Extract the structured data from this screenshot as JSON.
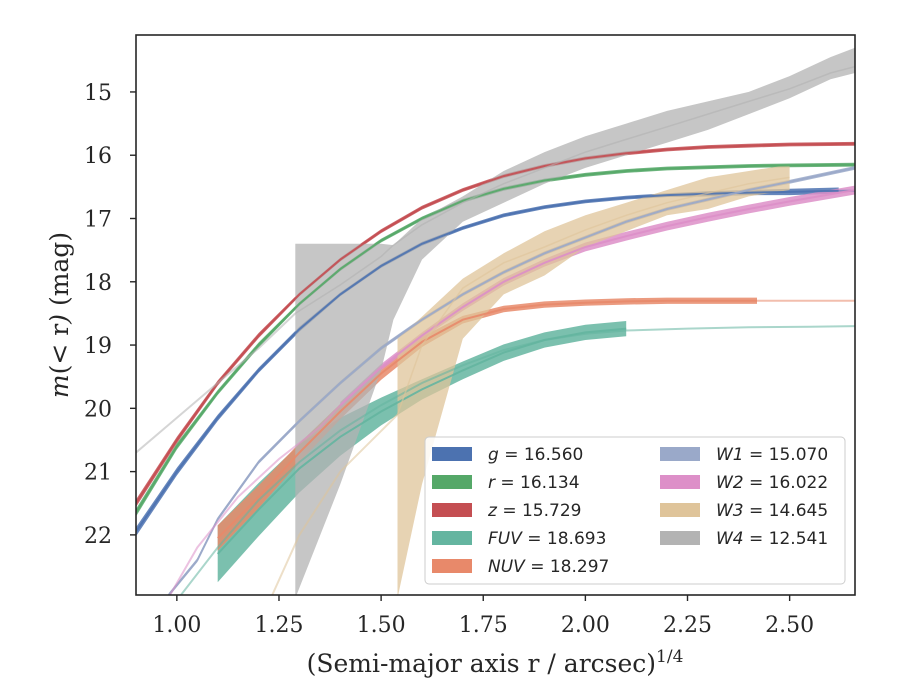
{
  "chart_data": {
    "type": "line",
    "xlabel": "(Semi-major axis r / arcsec)",
    "xlabel_exponent": "1/4",
    "ylabel": "m(< r) (mag)",
    "xlim": [
      0.9,
      2.66
    ],
    "ylim": [
      22.95,
      14.1
    ],
    "y_inverted": true,
    "grid": false,
    "legend_position": "lower right",
    "xticks": [
      1.0,
      1.25,
      1.5,
      1.75,
      2.0,
      2.25,
      2.5
    ],
    "xtick_labels": [
      "1.00",
      "1.25",
      "1.50",
      "1.75",
      "2.00",
      "2.25",
      "2.50"
    ],
    "yticks": [
      15,
      16,
      17,
      18,
      19,
      20,
      21,
      22
    ],
    "ytick_labels": [
      "15",
      "16",
      "17",
      "18",
      "19",
      "20",
      "21",
      "22"
    ],
    "series": [
      {
        "name": "g",
        "label_value": "= 16.560",
        "color": "#4c72b0",
        "x": [
          0.9,
          1.0,
          1.1,
          1.2,
          1.3,
          1.4,
          1.5,
          1.6,
          1.7,
          1.8,
          1.9,
          2.0,
          2.1,
          2.2,
          2.3,
          2.4,
          2.5,
          2.62
        ],
        "y": [
          21.95,
          21.0,
          20.15,
          19.4,
          18.75,
          18.2,
          17.75,
          17.4,
          17.15,
          16.95,
          16.82,
          16.73,
          16.67,
          16.63,
          16.61,
          16.59,
          16.58,
          16.56
        ],
        "band": [
          0.07,
          0.06,
          0.05,
          0.04,
          0.04,
          0.03,
          0.03,
          0.03,
          0.03,
          0.03,
          0.03,
          0.03,
          0.03,
          0.03,
          0.04,
          0.04,
          0.05,
          0.05
        ],
        "ext_x": [
          2.62,
          2.66
        ],
        "ext_y": [
          16.56,
          16.56
        ]
      },
      {
        "name": "r",
        "label_value": "= 16.134",
        "color": "#55a868",
        "x": [
          0.9,
          1.0,
          1.1,
          1.2,
          1.3,
          1.4,
          1.5,
          1.6,
          1.7,
          1.8,
          1.9,
          2.0,
          2.1,
          2.2,
          2.3,
          2.4,
          2.5,
          2.66
        ],
        "y": [
          21.65,
          20.6,
          19.75,
          19.0,
          18.35,
          17.8,
          17.35,
          17.0,
          16.72,
          16.53,
          16.4,
          16.31,
          16.25,
          16.21,
          16.19,
          16.17,
          16.16,
          16.15
        ],
        "band": [
          0.06,
          0.05,
          0.04,
          0.04,
          0.03,
          0.03,
          0.03,
          0.03,
          0.03,
          0.03,
          0.03,
          0.03,
          0.03,
          0.03,
          0.03,
          0.03,
          0.03,
          0.03
        ]
      },
      {
        "name": "z",
        "label_value": "= 15.729",
        "color": "#c44e52",
        "x": [
          0.9,
          1.0,
          1.1,
          1.2,
          1.3,
          1.4,
          1.5,
          1.6,
          1.7,
          1.8,
          1.9,
          2.0,
          2.1,
          2.2,
          2.3,
          2.4,
          2.5,
          2.66
        ],
        "y": [
          21.5,
          20.5,
          19.6,
          18.85,
          18.2,
          17.65,
          17.2,
          16.83,
          16.55,
          16.33,
          16.17,
          16.05,
          15.97,
          15.91,
          15.87,
          15.85,
          15.83,
          15.82
        ],
        "band": [
          0.06,
          0.05,
          0.04,
          0.04,
          0.03,
          0.03,
          0.03,
          0.03,
          0.03,
          0.03,
          0.03,
          0.03,
          0.03,
          0.03,
          0.03,
          0.03,
          0.03,
          0.03
        ]
      },
      {
        "name": "FUV",
        "label_value": "= 18.693",
        "color": "#64b5a0",
        "x": [
          1.1,
          1.2,
          1.3,
          1.4,
          1.5,
          1.6,
          1.7,
          1.8,
          1.9,
          2.0,
          2.1
        ],
        "y": [
          22.3,
          21.6,
          20.95,
          20.45,
          20.05,
          19.7,
          19.4,
          19.12,
          18.92,
          18.8,
          18.74
        ],
        "band": [
          0.45,
          0.42,
          0.38,
          0.3,
          0.22,
          0.16,
          0.14,
          0.13,
          0.12,
          0.12,
          0.12
        ],
        "ext_x": [
          0.98,
          1.1,
          1.2,
          1.3,
          1.4,
          1.5,
          1.6,
          1.7,
          1.8,
          1.9,
          2.0,
          2.1,
          2.25,
          2.4,
          2.55,
          2.66
        ],
        "ext_y": [
          23.2,
          22.2,
          21.45,
          20.85,
          20.35,
          19.95,
          19.6,
          19.32,
          19.08,
          18.92,
          18.82,
          18.77,
          18.74,
          18.72,
          18.71,
          18.7
        ]
      },
      {
        "name": "NUV",
        "label_value": "= 18.297",
        "color": "#e8896a",
        "x": [
          1.1,
          1.2,
          1.3,
          1.4,
          1.5,
          1.6,
          1.7,
          1.8,
          1.9,
          2.0,
          2.1,
          2.2,
          2.3,
          2.42
        ],
        "y": [
          22.05,
          21.4,
          20.7,
          20.05,
          19.45,
          18.95,
          18.6,
          18.43,
          18.36,
          18.33,
          18.31,
          18.3,
          18.3,
          18.3
        ],
        "band": [
          0.2,
          0.18,
          0.15,
          0.12,
          0.1,
          0.08,
          0.06,
          0.05,
          0.05,
          0.05,
          0.05,
          0.05,
          0.05,
          0.05
        ],
        "ext_x": [
          2.42,
          2.66
        ],
        "ext_y": [
          18.3,
          18.3
        ]
      },
      {
        "name": "W1",
        "label_value": "= 15.070",
        "color": "#9aa9c9",
        "x": [
          0.98,
          1.05,
          1.1,
          1.2,
          1.3,
          1.4,
          1.5,
          1.6,
          1.7,
          1.8,
          1.9,
          2.0,
          2.1,
          2.2,
          2.3,
          2.4,
          2.5,
          2.66
        ],
        "y": [
          22.95,
          22.4,
          21.75,
          20.85,
          20.2,
          19.6,
          19.05,
          18.6,
          18.2,
          17.85,
          17.55,
          17.3,
          17.05,
          16.85,
          16.7,
          16.55,
          16.42,
          16.2
        ],
        "band": [
          0.03,
          0.03,
          0.03,
          0.03,
          0.03,
          0.03,
          0.03,
          0.03,
          0.03,
          0.03,
          0.03,
          0.03,
          0.03,
          0.03,
          0.03,
          0.03,
          0.03,
          0.03
        ]
      },
      {
        "name": "W2",
        "label_value": "= 16.022",
        "color": "#dd8fc8",
        "x": [
          1.4,
          1.5,
          1.6,
          1.7,
          1.8,
          1.9,
          2.0,
          2.1,
          2.2,
          2.3,
          2.4,
          2.5,
          2.66
        ],
        "y": [
          19.95,
          19.35,
          18.85,
          18.4,
          18.0,
          17.7,
          17.45,
          17.28,
          17.12,
          16.98,
          16.85,
          16.73,
          16.55
        ],
        "band": [
          0.05,
          0.05,
          0.05,
          0.06,
          0.06,
          0.06,
          0.07,
          0.07,
          0.07,
          0.07,
          0.07,
          0.07,
          0.07
        ],
        "ext_x": [
          0.97,
          1.05,
          1.15,
          1.25,
          1.35,
          1.4
        ],
        "ext_y": [
          23.1,
          22.2,
          21.4,
          20.8,
          20.3,
          19.95
        ]
      },
      {
        "name": "W3",
        "label_value": "= 14.645",
        "color": "#dfc49a",
        "x": [
          1.54,
          1.6,
          1.7,
          1.8,
          1.9,
          2.0,
          2.1,
          2.2,
          2.3,
          2.4,
          2.5
        ],
        "y": [
          20.1,
          19.0,
          18.1,
          17.7,
          17.45,
          17.18,
          16.95,
          16.75,
          16.6,
          16.45,
          16.35
        ],
        "band_upper": [
          18.9,
          18.55,
          17.95,
          17.55,
          17.2,
          16.95,
          16.75,
          16.55,
          16.35,
          16.25,
          16.15
        ],
        "band_lower": [
          23.0,
          21.2,
          18.9,
          18.2,
          17.9,
          17.45,
          17.2,
          16.95,
          16.85,
          16.65,
          16.55
        ],
        "ext_x": [
          1.23,
          1.3,
          1.4,
          1.54
        ],
        "ext_y": [
          23.0,
          22.0,
          21.0,
          20.1
        ]
      },
      {
        "name": "W4",
        "label_value": "= 12.541",
        "color": "#b3b3b3",
        "x": [
          1.29,
          1.4,
          1.5,
          1.53,
          1.6,
          1.7,
          1.8,
          1.9,
          2.0,
          2.1,
          2.2,
          2.3,
          2.4,
          2.5,
          2.6,
          2.66
        ],
        "y": [
          18.5,
          18.05,
          17.6,
          17.42,
          17.1,
          16.75,
          16.45,
          16.2,
          15.95,
          15.75,
          15.55,
          15.35,
          15.15,
          14.95,
          14.7,
          14.6
        ],
        "band_upper": [
          17.4,
          17.4,
          17.4,
          17.42,
          17.0,
          16.65,
          16.25,
          15.95,
          15.7,
          15.5,
          15.3,
          15.15,
          15.0,
          14.75,
          14.45,
          14.3
        ],
        "band_lower": [
          23.0,
          21.2,
          19.4,
          18.6,
          17.65,
          17.05,
          16.75,
          16.45,
          16.2,
          16.0,
          15.8,
          15.6,
          15.35,
          15.1,
          14.8,
          14.7
        ],
        "ext_x": [
          0.9,
          1.0,
          1.1,
          1.2,
          1.29
        ],
        "ext_y": [
          20.7,
          20.15,
          19.6,
          19.05,
          18.5
        ]
      }
    ],
    "legend": [
      {
        "name": "g",
        "value": "= 16.560",
        "color": "#4c72b0"
      },
      {
        "name": "r",
        "value": "= 16.134",
        "color": "#55a868"
      },
      {
        "name": "z",
        "value": "= 15.729",
        "color": "#c44e52"
      },
      {
        "name": "FUV",
        "value": "= 18.693",
        "color": "#64b5a0"
      },
      {
        "name": "NUV",
        "value": "= 18.297",
        "color": "#e8896a"
      },
      {
        "name": "W1",
        "value": "= 15.070",
        "color": "#9aa9c9"
      },
      {
        "name": "W2",
        "value": "= 16.022",
        "color": "#dd8fc8"
      },
      {
        "name": "W3",
        "value": "= 14.645",
        "color": "#dfc49a"
      },
      {
        "name": "W4",
        "value": "= 12.541",
        "color": "#b3b3b3"
      }
    ]
  }
}
